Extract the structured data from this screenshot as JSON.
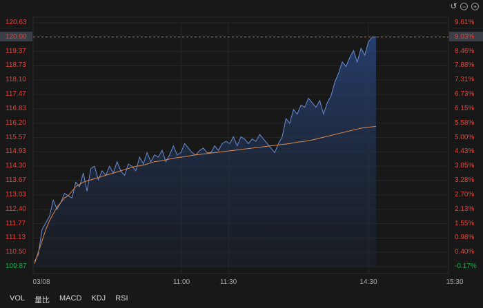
{
  "toolbar": {
    "undo_icon": "undo-icon",
    "zoom_out_icon": "zoom-out-icon",
    "zoom_in_icon": "zoom-in-icon"
  },
  "colors": {
    "background": "#181818",
    "up": "#e8453c",
    "down": "#16b24a",
    "price_line": "#6a8fd6",
    "avg_line": "#e08a4c",
    "ref_line": "#c0704a",
    "label_highlight": "#3a3f47"
  },
  "tabs": [
    "VOL",
    "量比",
    "MACD",
    "KDJ",
    "RSI"
  ],
  "chart_data": {
    "type": "line",
    "price_ticks": [
      "120.63",
      "120.00",
      "119.37",
      "118.73",
      "118.10",
      "117.47",
      "116.83",
      "116.20",
      "115.57",
      "114.93",
      "114.30",
      "113.67",
      "113.03",
      "112.40",
      "111.77",
      "111.13",
      "110.50",
      "109.87"
    ],
    "percent_ticks": [
      "9.61%",
      "9.03%",
      "8.46%",
      "7.88%",
      "7.31%",
      "6.73%",
      "6.15%",
      "5.58%",
      "5.00%",
      "4.43%",
      "3.85%",
      "3.28%",
      "2.70%",
      "2.13%",
      "1.55%",
      "0.98%",
      "0.40%",
      "-0.17%"
    ],
    "x_ticks": [
      "03/08",
      "11:00",
      "11:30",
      "14:30",
      "15:30"
    ],
    "ylim": [
      109.87,
      120.63
    ],
    "highlight_price": "120.00",
    "highlight_percent": "9.03%",
    "series": [
      {
        "name": "price",
        "values": [
          110.1,
          110.4,
          111.5,
          111.8,
          112.1,
          112.8,
          112.4,
          112.7,
          113.1,
          113.0,
          112.9,
          113.6,
          113.4,
          114.0,
          113.2,
          114.2,
          114.3,
          113.7,
          114.1,
          113.9,
          114.3,
          114.0,
          114.5,
          114.1,
          113.9,
          114.4,
          114.3,
          114.1,
          114.7,
          114.4,
          114.9,
          114.5,
          114.8,
          114.7,
          115.0,
          114.5,
          114.8,
          115.2,
          114.8,
          114.9,
          115.3,
          115.1,
          114.9,
          114.8,
          115.0,
          115.1,
          114.9,
          114.9,
          115.2,
          115.0,
          115.3,
          115.4,
          115.3,
          115.6,
          115.2,
          115.6,
          115.5,
          115.3,
          115.5,
          115.4,
          115.7,
          115.5,
          115.3,
          115.1,
          114.9,
          115.3,
          115.6,
          116.4,
          116.2,
          116.8,
          116.6,
          117.0,
          116.9,
          117.3,
          117.1,
          116.9,
          117.2,
          116.6,
          117.1,
          117.4,
          118.0,
          118.4,
          118.9,
          118.7,
          119.1,
          119.4,
          118.9,
          119.5,
          119.2,
          119.8,
          120.0,
          120.0
        ],
        "color": "#6a8fd6"
      },
      {
        "name": "average",
        "values": [
          110.0,
          110.5,
          111.0,
          111.5,
          111.9,
          112.2,
          112.5,
          112.7,
          112.9,
          113.0,
          113.2,
          113.4,
          113.5,
          113.6,
          113.65,
          113.7,
          113.75,
          113.8,
          113.85,
          113.9,
          113.95,
          114.0,
          114.05,
          114.1,
          114.15,
          114.2,
          114.25,
          114.3,
          114.32,
          114.35,
          114.4,
          114.45,
          114.5,
          114.52,
          114.55,
          114.58,
          114.62,
          114.65,
          114.68,
          114.7,
          114.72,
          114.75,
          114.78,
          114.8,
          114.82,
          114.84,
          114.86,
          114.88,
          114.9,
          114.92,
          114.94,
          114.96,
          114.98,
          115.0,
          115.02,
          115.04,
          115.06,
          115.08,
          115.1,
          115.12,
          115.14,
          115.16,
          115.18,
          115.2,
          115.22,
          115.24,
          115.26,
          115.28,
          115.3,
          115.33,
          115.36,
          115.38,
          115.4,
          115.43,
          115.46,
          115.5,
          115.54,
          115.58,
          115.62,
          115.66,
          115.7,
          115.74,
          115.78,
          115.82,
          115.86,
          115.9,
          115.94,
          115.98,
          116.0,
          116.02,
          116.04,
          116.06
        ],
        "color": "#e08a4c"
      }
    ]
  }
}
